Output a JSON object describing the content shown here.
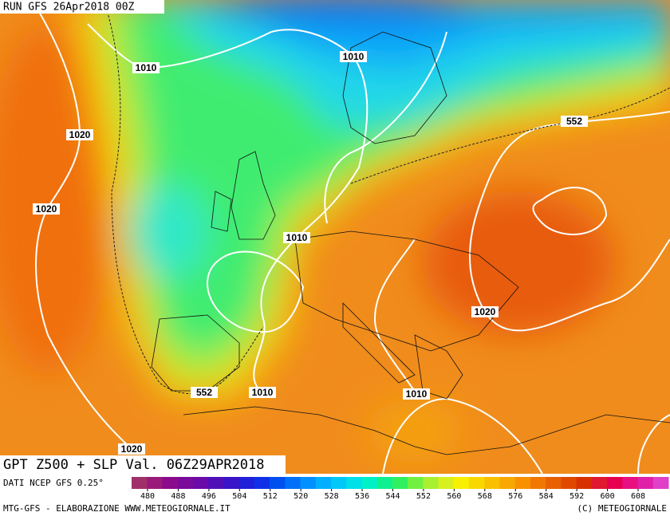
{
  "header": {
    "run": "RUN GFS 26Apr2018 00Z"
  },
  "title": "GPT Z500 + SLP Val. 06Z29APR2018",
  "source": "DATI NCEP GFS 0.25°",
  "footer": {
    "left": "MTG-GFS - ELABORAZIONE WWW.METEOGIORNALE.IT",
    "right": "(C) METEOGIORNALE"
  },
  "colorbar": {
    "ticks": [
      480,
      488,
      496,
      504,
      512,
      520,
      528,
      536,
      544,
      552,
      560,
      568,
      576,
      584,
      592,
      600,
      608
    ],
    "colors": [
      "#a0306a",
      "#9a1a7a",
      "#8c0a8c",
      "#7a0a9a",
      "#6a0aa8",
      "#5010b8",
      "#3a14c8",
      "#2020d8",
      "#1030e8",
      "#0050f0",
      "#0070f8",
      "#0090ff",
      "#00b0ff",
      "#00c8f8",
      "#00e0e8",
      "#00f0c8",
      "#10f090",
      "#30f060",
      "#70f040",
      "#a8f030",
      "#d8f020",
      "#f8f000",
      "#f8d800",
      "#f8c000",
      "#f8a800",
      "#f89000",
      "#f07800",
      "#e86000",
      "#e04800",
      "#d83000",
      "#e01830",
      "#e80050",
      "#e81080",
      "#e020a8",
      "#e040c8"
    ]
  },
  "contour_labels": [
    "1010",
    "1010",
    "1020",
    "1020",
    "1010",
    "1020",
    "552",
    "1010",
    "1010",
    "1020",
    "552"
  ]
}
